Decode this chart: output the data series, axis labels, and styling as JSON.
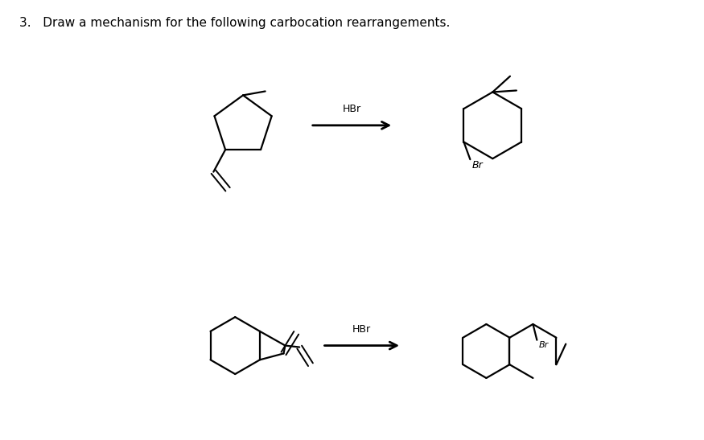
{
  "title": "3.   Draw a mechanism for the following carbocation rearrangements.",
  "title_fontsize": 11,
  "background_color": "#ffffff",
  "text_color": "#000000",
  "reaction1_label": "HBr",
  "reaction2_label": "HBr",
  "br_label": "Br"
}
